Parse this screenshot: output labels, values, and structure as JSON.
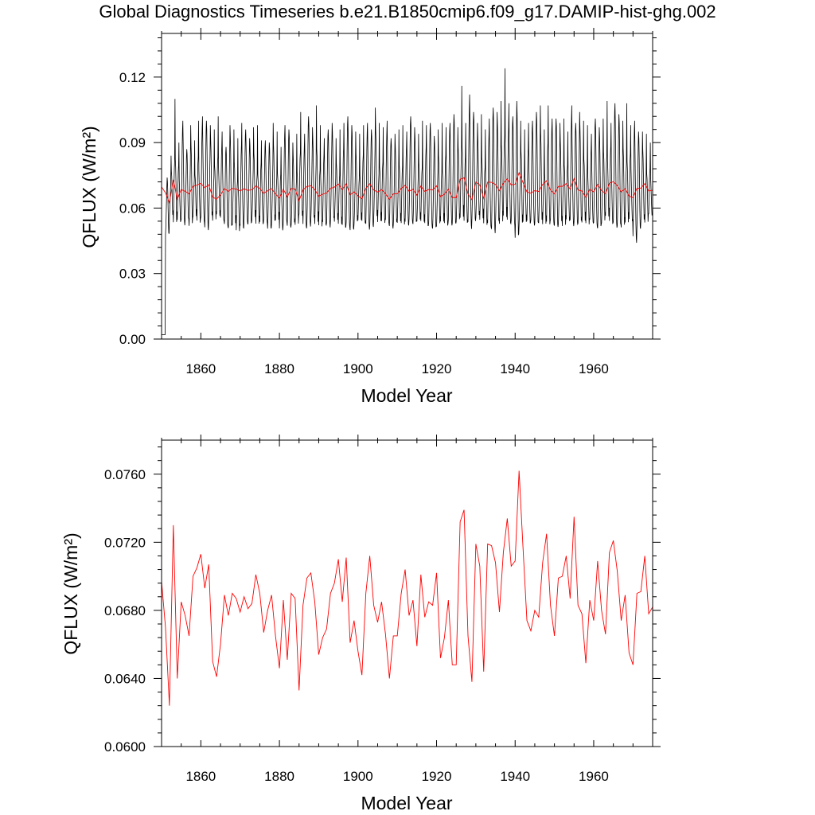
{
  "title": "Global Diagnostics Timeseries b.e21.B1850cmip6.f09_g17.DAMIP-hist-ghg.002",
  "chart_data": [
    {
      "type": "line",
      "xlabel": "Model Year",
      "ylabel": "QFLUX (W/m²)",
      "xlim": [
        1850,
        1975
      ],
      "ylim": [
        0.0,
        0.14
      ],
      "xticks": [
        "1860",
        "1880",
        "1900",
        "1920",
        "1940",
        "1960"
      ],
      "yticks": [
        "0.00",
        "0.03",
        "0.06",
        "0.09",
        "0.12"
      ],
      "grid": false,
      "series": [
        {
          "kind": "monthly",
          "color": "#000000",
          "start_year": 1850,
          "samples_per_year": 12,
          "annual_max": [
            0.002,
            0.074,
            0.084,
            0.11,
            0.09,
            0.1,
            0.087,
            0.098,
            0.091,
            0.1,
            0.102,
            0.1,
            0.098,
            0.096,
            0.102,
            0.095,
            0.088,
            0.098,
            0.096,
            0.092,
            0.099,
            0.096,
            0.092,
            0.097,
            0.098,
            0.091,
            0.091,
            0.09,
            0.099,
            0.095,
            0.088,
            0.098,
            0.096,
            0.09,
            0.094,
            0.104,
            0.094,
            0.102,
            0.097,
            0.107,
            0.098,
            0.092,
            0.096,
            0.099,
            0.092,
            0.096,
            0.099,
            0.102,
            0.098,
            0.095,
            0.094,
            0.098,
            0.099,
            0.096,
            0.106,
            0.099,
            0.097,
            0.1,
            0.092,
            0.094,
            0.096,
            0.098,
            0.095,
            0.102,
            0.097,
            0.094,
            0.1,
            0.098,
            0.099,
            0.093,
            0.096,
            0.099,
            0.097,
            0.099,
            0.103,
            0.097,
            0.116,
            0.099,
            0.112,
            0.104,
            0.099,
            0.103,
            0.096,
            0.101,
            0.106,
            0.104,
            0.109,
            0.124,
            0.108,
            0.102,
            0.109,
            0.1,
            0.096,
            0.099,
            0.1,
            0.104,
            0.107,
            0.096,
            0.107,
            0.101,
            0.101,
            0.099,
            0.101,
            0.095,
            0.107,
            0.099,
            0.104,
            0.1,
            0.098,
            0.094,
            0.101,
            0.097,
            0.101,
            0.109,
            0.099,
            0.108,
            0.103,
            0.1,
            0.108,
            0.098,
            0.1,
            0.095,
            0.095,
            0.094,
            0.09
          ],
          "annual_min": [
            0.002,
            0.047,
            0.055,
            0.05,
            0.052,
            0.052,
            0.054,
            0.05,
            0.054,
            0.051,
            0.053,
            0.049,
            0.054,
            0.052,
            0.054,
            0.053,
            0.051,
            0.049,
            0.05,
            0.047,
            0.049,
            0.053,
            0.051,
            0.053,
            0.05,
            0.051,
            0.053,
            0.049,
            0.051,
            0.052,
            0.048,
            0.053,
            0.05,
            0.051,
            0.05,
            0.054,
            0.05,
            0.051,
            0.053,
            0.05,
            0.049,
            0.051,
            0.051,
            0.053,
            0.052,
            0.05,
            0.049,
            0.051,
            0.048,
            0.051,
            0.052,
            0.051,
            0.05,
            0.05,
            0.053,
            0.051,
            0.051,
            0.052,
            0.05,
            0.051,
            0.051,
            0.05,
            0.051,
            0.053,
            0.051,
            0.052,
            0.051,
            0.05,
            0.051,
            0.049,
            0.05,
            0.051,
            0.05,
            0.052,
            0.051,
            0.052,
            0.052,
            0.051,
            0.05,
            0.053,
            0.054,
            0.052,
            0.05,
            0.05,
            0.048,
            0.051,
            0.05,
            0.052,
            0.051,
            0.052,
            0.044,
            0.05,
            0.051,
            0.051,
            0.052,
            0.051,
            0.051,
            0.05,
            0.05,
            0.052,
            0.05,
            0.051,
            0.049,
            0.052,
            0.051,
            0.052,
            0.051,
            0.051,
            0.05,
            0.052,
            0.051,
            0.049,
            0.051,
            0.053,
            0.051,
            0.051,
            0.05,
            0.049,
            0.05,
            0.052,
            0.044,
            0.049,
            0.052,
            0.051,
            0.055
          ]
        },
        {
          "kind": "annual",
          "color": "#ff0000",
          "x": [
            1850,
            1851,
            1852,
            1853,
            1854,
            1855,
            1856,
            1857,
            1858,
            1859,
            1860,
            1861,
            1862,
            1863,
            1864,
            1865,
            1866,
            1867,
            1868,
            1869,
            1870,
            1871,
            1872,
            1873,
            1874,
            1875,
            1876,
            1877,
            1878,
            1879,
            1880,
            1881,
            1882,
            1883,
            1884,
            1885,
            1886,
            1887,
            1888,
            1889,
            1890,
            1891,
            1892,
            1893,
            1894,
            1895,
            1896,
            1897,
            1898,
            1899,
            1900,
            1901,
            1902,
            1903,
            1904,
            1905,
            1906,
            1907,
            1908,
            1909,
            1910,
            1911,
            1912,
            1913,
            1914,
            1915,
            1916,
            1917,
            1918,
            1919,
            1920,
            1921,
            1922,
            1923,
            1924,
            1925,
            1926,
            1927,
            1928,
            1929,
            1930,
            1931,
            1932,
            1933,
            1934,
            1935,
            1936,
            1937,
            1938,
            1939,
            1940,
            1941,
            1942,
            1943,
            1944,
            1945,
            1946,
            1947,
            1948,
            1949,
            1950,
            1951,
            1952,
            1953,
            1954,
            1955,
            1956,
            1957,
            1958,
            1959,
            1960,
            1961,
            1962,
            1963,
            1964,
            1965,
            1966,
            1967,
            1968,
            1969,
            1970,
            1971,
            1972,
            1973,
            1974,
            1975
          ],
          "values": [
            0.0697,
            0.067,
            0.0624,
            0.073,
            0.064,
            0.0685,
            0.0677,
            0.0665,
            0.07,
            0.0705,
            0.0713,
            0.0693,
            0.0707,
            0.065,
            0.0641,
            0.066,
            0.0689,
            0.0677,
            0.069,
            0.0687,
            0.0679,
            0.0688,
            0.0681,
            0.0684,
            0.0701,
            0.069,
            0.0667,
            0.068,
            0.0689,
            0.0665,
            0.0646,
            0.0686,
            0.0651,
            0.069,
            0.0687,
            0.0633,
            0.0683,
            0.0699,
            0.0702,
            0.0685,
            0.0654,
            0.0664,
            0.0669,
            0.069,
            0.0696,
            0.071,
            0.0685,
            0.0711,
            0.0661,
            0.0674,
            0.0656,
            0.0642,
            0.069,
            0.0712,
            0.0683,
            0.0673,
            0.0685,
            0.0666,
            0.064,
            0.0665,
            0.0665,
            0.069,
            0.0704,
            0.0677,
            0.0686,
            0.0659,
            0.0701,
            0.0676,
            0.0685,
            0.0683,
            0.0702,
            0.0652,
            0.0664,
            0.0686,
            0.0648,
            0.0648,
            0.0732,
            0.0739,
            0.0665,
            0.0638,
            0.0719,
            0.0706,
            0.0644,
            0.0719,
            0.0718,
            0.0708,
            0.0679,
            0.0714,
            0.0734,
            0.0706,
            0.0709,
            0.0762,
            0.0717,
            0.0674,
            0.0668,
            0.068,
            0.0676,
            0.0708,
            0.0725,
            0.0683,
            0.0665,
            0.0699,
            0.07,
            0.0712,
            0.0687,
            0.0735,
            0.0683,
            0.0678,
            0.0649,
            0.0686,
            0.0674,
            0.0709,
            0.068,
            0.0666,
            0.0714,
            0.0721,
            0.0703,
            0.0674,
            0.0689,
            0.0655,
            0.0648,
            0.069,
            0.0691,
            0.0712,
            0.0678,
            0.0682
          ]
        }
      ]
    },
    {
      "type": "line",
      "xlabel": "Model Year",
      "ylabel": "QFLUX (W/m²)",
      "xlim": [
        1850,
        1975
      ],
      "ylim": [
        0.06,
        0.078
      ],
      "xticks": [
        "1860",
        "1880",
        "1900",
        "1920",
        "1940",
        "1960"
      ],
      "yticks": [
        "0.0600",
        "0.0640",
        "0.0680",
        "0.0720",
        "0.0760"
      ],
      "grid": false,
      "series": [
        {
          "kind": "annual",
          "color": "#ff0000",
          "same_as": "chart_data.0.series.1"
        }
      ]
    }
  ]
}
